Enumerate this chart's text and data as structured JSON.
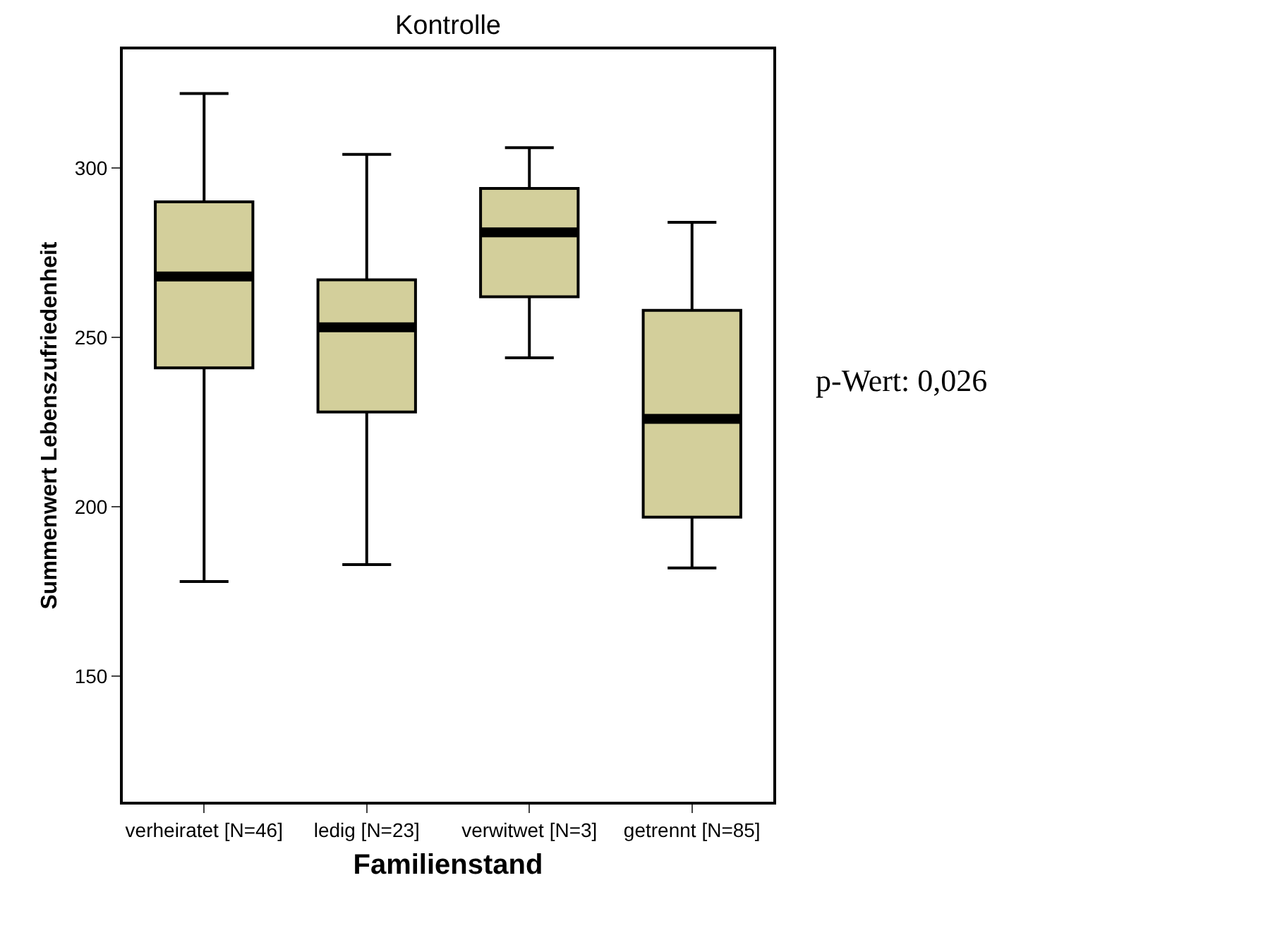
{
  "chart_data": {
    "type": "box",
    "title": "Kontrolle",
    "xlabel": "Familienstand",
    "ylabel": "Summenwert Lebenszufriedenheit",
    "categories": [
      "verheiratet [N=46]",
      "ledig [N=23]",
      "verwitwet [N=3]",
      "getrennt [N=85]"
    ],
    "boxes": [
      {
        "low": 178,
        "q1": 241,
        "median": 268,
        "q3": 290,
        "high": 322
      },
      {
        "low": 183,
        "q1": 228,
        "median": 253,
        "q3": 267,
        "high": 304
      },
      {
        "low": 244,
        "q1": 262,
        "median": 281,
        "q3": 294,
        "high": 306
      },
      {
        "low": 182,
        "q1": 197,
        "median": 226,
        "q3": 258,
        "high": 284
      }
    ],
    "color": "#d3cf9b",
    "ylim": [
      113,
      335
    ],
    "yticks": [
      150,
      200,
      250,
      300
    ],
    "annotations": [
      "p-Wert: 0,026"
    ]
  }
}
